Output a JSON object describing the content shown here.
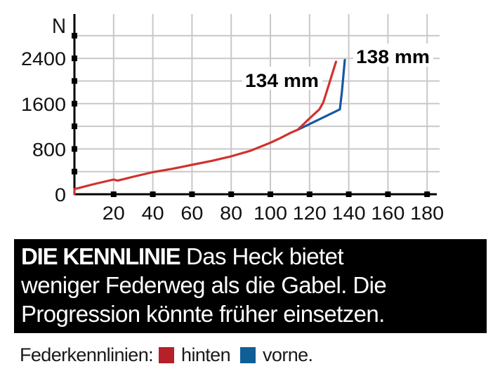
{
  "chart_data": {
    "type": "line",
    "title": "",
    "xlabel": "",
    "ylabel": "N",
    "xlim": [
      0,
      180
    ],
    "ylim": [
      0,
      2800
    ],
    "x_ticks": [
      20,
      40,
      60,
      80,
      100,
      120,
      140,
      160,
      180
    ],
    "y_ticks_labeled": [
      0,
      800,
      1600,
      2400
    ],
    "y_gridlines": [
      400,
      800,
      1200,
      1600,
      2000,
      2400,
      2800
    ],
    "grid": true,
    "legend_position": "bottom",
    "series": [
      {
        "name": "hinten",
        "color": "#d0332e",
        "end_label": "134 mm",
        "points": [
          [
            0,
            0
          ],
          [
            0,
            90
          ],
          [
            10,
            180
          ],
          [
            20,
            260
          ],
          [
            22,
            240
          ],
          [
            30,
            310
          ],
          [
            40,
            390
          ],
          [
            50,
            450
          ],
          [
            60,
            520
          ],
          [
            70,
            590
          ],
          [
            80,
            670
          ],
          [
            90,
            770
          ],
          [
            100,
            910
          ],
          [
            105,
            990
          ],
          [
            110,
            1080
          ],
          [
            114,
            1140
          ],
          [
            120,
            1340
          ],
          [
            125,
            1500
          ],
          [
            127,
            1620
          ],
          [
            130,
            1950
          ],
          [
            133.5,
            2340
          ]
        ]
      },
      {
        "name": "vorne",
        "color": "#1757a3",
        "end_label": "138 mm",
        "points": [
          [
            114,
            1140
          ],
          [
            120,
            1240
          ],
          [
            135.5,
            1500
          ],
          [
            136.5,
            1800
          ],
          [
            138,
            2370
          ]
        ]
      }
    ],
    "annotations": [
      "134 mm",
      "138 mm"
    ]
  },
  "chart": {
    "y_unit": "N",
    "x_tick_labels": [
      "20",
      "40",
      "60",
      "80",
      "100",
      "120",
      "140",
      "160",
      "180"
    ],
    "y_tick_labels": [
      "0",
      "800",
      "1600",
      "2400"
    ],
    "label_rear": "134 mm",
    "label_front": "138 mm"
  },
  "caption": {
    "heading": "DIE KENNLINIE",
    "line1": "Das Heck bietet",
    "line2": "weniger Federweg als die Gabel. Die",
    "line3": "Progression könnte früher einsetzen."
  },
  "legend": {
    "prefix": "Federkennlinien:",
    "items": [
      {
        "label": "hinten",
        "color": "#b5202a"
      },
      {
        "label": "vorne.",
        "color": "#0e5f98"
      }
    ]
  }
}
